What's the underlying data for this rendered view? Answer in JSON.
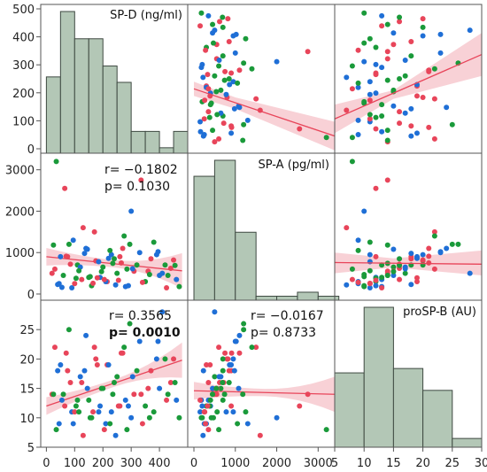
{
  "chart_data": {
    "type": "scatter_matrix",
    "variables": [
      "SP-D (ng/ml)",
      "SP-A (pg/ml)",
      "proSP-B (AU)"
    ],
    "colors": {
      "hist_fill": "#b3c7b6",
      "hist_stroke": "#3f4a42",
      "red": "#e8455a",
      "blue": "#1f6fd6",
      "green": "#1a9a3a",
      "fit_line": "#e8455a",
      "ci_band": "#f7c9cf"
    },
    "histograms": {
      "sp_d": {
        "bins": [
          0,
          50,
          100,
          150,
          200,
          250,
          300,
          350,
          400,
          450,
          500
        ],
        "counts": [
          14,
          26,
          21,
          21,
          16,
          13,
          4,
          4,
          1,
          4
        ]
      },
      "sp_a": {
        "bins": [
          0,
          500,
          1000,
          1500,
          2000,
          2500,
          3000,
          3500
        ],
        "counts": [
          31,
          35,
          17,
          1,
          1,
          2,
          1
        ]
      },
      "prosp_b": {
        "bins": [
          5,
          10,
          15,
          20,
          25,
          30
        ],
        "counts": [
          17,
          32,
          18,
          13,
          2
        ]
      }
    },
    "scales": {
      "sp_d": {
        "range": [
          -20,
          500
        ],
        "ticks": [
          0,
          100,
          200,
          300,
          400
        ]
      },
      "sp_a": {
        "range": [
          -150,
          3400
        ],
        "ticks": [
          0,
          1000,
          2000,
          3000
        ]
      },
      "prosp_b": {
        "range": [
          5,
          30
        ],
        "ticks": [
          5,
          10,
          15,
          20,
          25,
          30
        ]
      }
    },
    "axis_ticks": {
      "left_row1": [
        0,
        100,
        200,
        300,
        400,
        500
      ],
      "left_row2": [
        0,
        1000,
        2000,
        3000
      ],
      "left_row3": [
        5,
        10,
        15,
        20,
        25
      ],
      "bottom_col1": [
        0,
        100,
        200,
        300,
        400
      ],
      "bottom_col2": [
        0,
        1000,
        2000,
        3000
      ],
      "bottom_col3": [
        5,
        10,
        15,
        20,
        25,
        30
      ]
    },
    "correlations": {
      "spa_spd": {
        "r": "r= −0.1802",
        "p": "p= 0.1030",
        "p_bold": false
      },
      "prosp_spd": {
        "r": "r=  0.3565",
        "p": "p= 0.0010",
        "p_bold": true
      },
      "prosp_spa": {
        "r": "r= −0.0167",
        "p": "p= 0.8733",
        "p_bold": false
      }
    },
    "fits": {
      "spa_spd": {
        "x": [
          0,
          480
        ],
        "y": [
          900,
          560
        ]
      },
      "prosp_spd": {
        "x": [
          0,
          480
        ],
        "y": [
          12.0,
          19.8
        ]
      },
      "prosp_spa": {
        "x": [
          0,
          3400
        ],
        "y": [
          14.6,
          14.0
        ]
      }
    },
    "observations": {
      "sp_d": [
        30,
        45,
        60,
        75,
        90,
        110,
        125,
        140,
        160,
        175,
        190,
        200,
        215,
        230,
        250,
        265,
        280,
        295,
        310,
        330,
        350,
        370,
        400,
        420,
        440,
        460,
        470,
        20,
        50,
        80,
        100,
        120,
        150,
        170,
        210,
        240,
        270,
        290,
        320,
        360,
        390,
        430,
        35,
        65,
        95,
        130,
        155,
        185,
        205,
        225,
        245,
        260,
        285,
        300,
        340,
        380,
        410,
        450,
        25,
        55,
        85,
        105,
        135,
        165,
        195,
        220,
        255,
        275,
        305,
        335,
        365,
        395,
        425,
        455,
        40,
        70,
        115,
        145,
        180,
        235
      ],
      "sp_a": [
        600,
        250,
        450,
        900,
        150,
        700,
        350,
        1100,
        200,
        800,
        400,
        650,
        300,
        950,
        500,
        750,
        180,
        1200,
        550,
        1000,
        300,
        850,
        450,
        700,
        620,
        350,
        180,
        500,
        900,
        1200,
        250,
        650,
        400,
        1500,
        300,
        850,
        1100,
        200,
        700,
        550,
        950,
        450,
        3200,
        2550,
        1300,
        1600,
        420,
        780,
        350,
        1050,
        220,
        900,
        600,
        2000,
        280,
        1250,
        500,
        820,
        1180,
        160,
        720,
        380,
        980,
        260,
        540,
        860,
        330,
        1400,
        610,
        2750,
        470,
        1020,
        150,
        690,
        230,
        910,
        560,
        1080,
        390,
        740
      ],
      "prosp_b": [
        22,
        9,
        14,
        18,
        11,
        13,
        16,
        24,
        10,
        20,
        12,
        15,
        19,
        11,
        17,
        21,
        13,
        26,
        14,
        23,
        12,
        18,
        15,
        20,
        16,
        13,
        10,
        14,
        19,
        25,
        11,
        17,
        13,
        22,
        9,
        16,
        21,
        12,
        18,
        15,
        20,
        14,
        8,
        12,
        9,
        7,
        10,
        11,
        8,
        9,
        7,
        12,
        8,
        10,
        9,
        11,
        28,
        20,
        14,
        13,
        16,
        12,
        18,
        11,
        15,
        19,
        12,
        22,
        17,
        14,
        10,
        23,
        13,
        16,
        18,
        21,
        11,
        15,
        19,
        14
      ],
      "group": [
        "r",
        "b",
        "g",
        "r",
        "b",
        "g",
        "r",
        "b",
        "g",
        "r",
        "b",
        "g",
        "r",
        "b",
        "g",
        "r",
        "b",
        "g",
        "r",
        "b",
        "g",
        "r",
        "b",
        "g",
        "r",
        "b",
        "g",
        "r",
        "b",
        "g",
        "r",
        "b",
        "g",
        "r",
        "b",
        "g",
        "r",
        "b",
        "g",
        "r",
        "b",
        "g",
        "g",
        "r",
        "b",
        "r",
        "g",
        "b",
        "r",
        "g",
        "b",
        "r",
        "g",
        "b",
        "r",
        "g",
        "b",
        "r",
        "g",
        "b",
        "r",
        "g",
        "b",
        "r",
        "g",
        "b",
        "r",
        "g",
        "b",
        "r",
        "g",
        "b",
        "r",
        "g",
        "b",
        "r",
        "g",
        "b",
        "r",
        "g"
      ]
    }
  }
}
